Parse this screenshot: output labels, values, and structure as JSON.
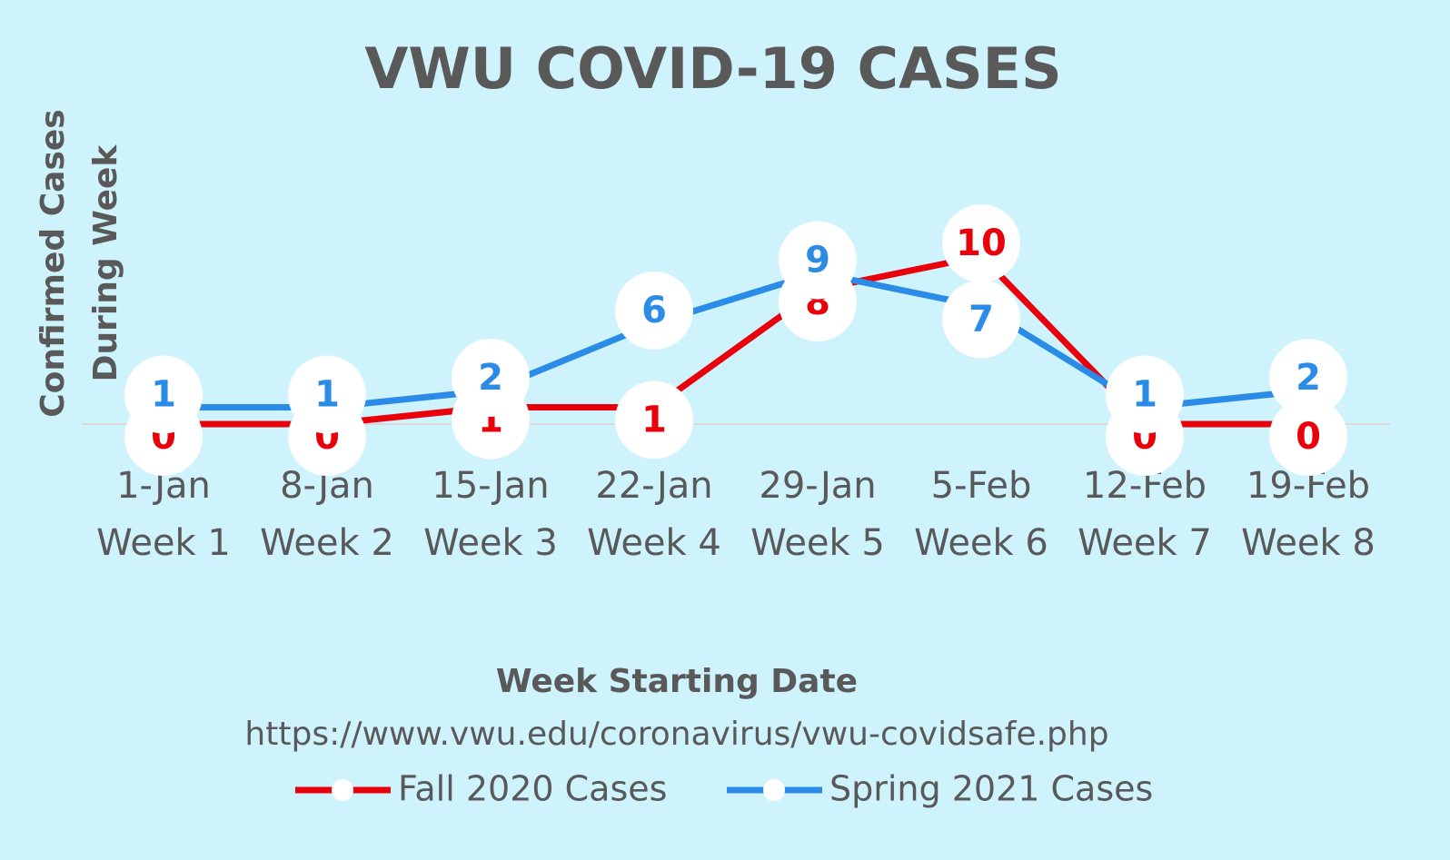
{
  "chart_data": {
    "type": "line",
    "title": "VWU COVID-19 CASES",
    "y_label": [
      "Confirmed Cases",
      "During Week"
    ],
    "x_label": "Week Starting Date",
    "source": "https://www.vwu.edu/coronavirus/vwu-covidsafe.php",
    "categories": [
      [
        "1-Jan",
        "Week 1"
      ],
      [
        "8-Jan",
        "Week 2"
      ],
      [
        "15-Jan",
        "Week 3"
      ],
      [
        "22-Jan",
        "Week 4"
      ],
      [
        "29-Jan",
        "Week 5"
      ],
      [
        "5-Feb",
        "Week 6"
      ],
      [
        "12-Feb",
        "Week 7"
      ],
      [
        "19-Feb",
        "Week 8"
      ]
    ],
    "series": [
      {
        "name": "Fall 2020 Cases",
        "color": "#e8000b",
        "values": [
          0,
          0,
          1,
          1,
          8,
          10,
          0,
          0
        ]
      },
      {
        "name": "Spring 2021 Cases",
        "color": "#2b8ce8",
        "values": [
          1,
          1,
          2,
          6,
          9,
          7,
          1,
          2
        ]
      }
    ],
    "ylim": [
      0,
      10
    ],
    "legend": "bottom"
  }
}
